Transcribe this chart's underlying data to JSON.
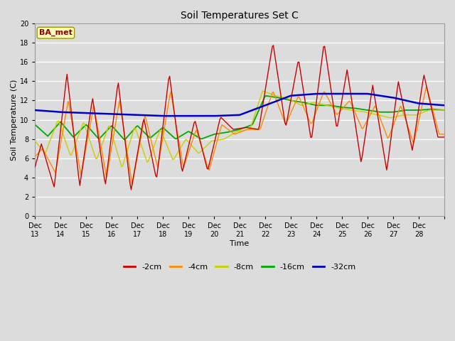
{
  "title": "Soil Temperatures Set C",
  "xlabel": "Time",
  "ylabel": "Soil Temperature (C)",
  "ylim": [
    0,
    20
  ],
  "yticks": [
    0,
    2,
    4,
    6,
    8,
    10,
    12,
    14,
    16,
    18,
    20
  ],
  "x_labels": [
    "Dec 13",
    "Dec 14",
    "Dec 15",
    "Dec 16",
    "Dec 17",
    "Dec 18",
    "Dec 19",
    "Dec 20",
    "Dec 21",
    "Dec 22",
    "Dec 23",
    "Dec 24",
    "Dec 25",
    "Dec 26",
    "Dec 27",
    "Dec 28"
  ],
  "annotation": "BA_met",
  "fig_bg_color": "#dcdcdc",
  "plot_bg_color": "#dcdcdc",
  "grid_color": "#ffffff",
  "colors": {
    "-2cm": "#cc0000",
    "-4cm": "#ff8800",
    "-8cm": "#cccc00",
    "-16cm": "#00aa00",
    "-32cm": "#0000cc"
  },
  "legend_labels": [
    "-2cm",
    "-4cm",
    "-8cm",
    "-16cm",
    "-32cm"
  ]
}
